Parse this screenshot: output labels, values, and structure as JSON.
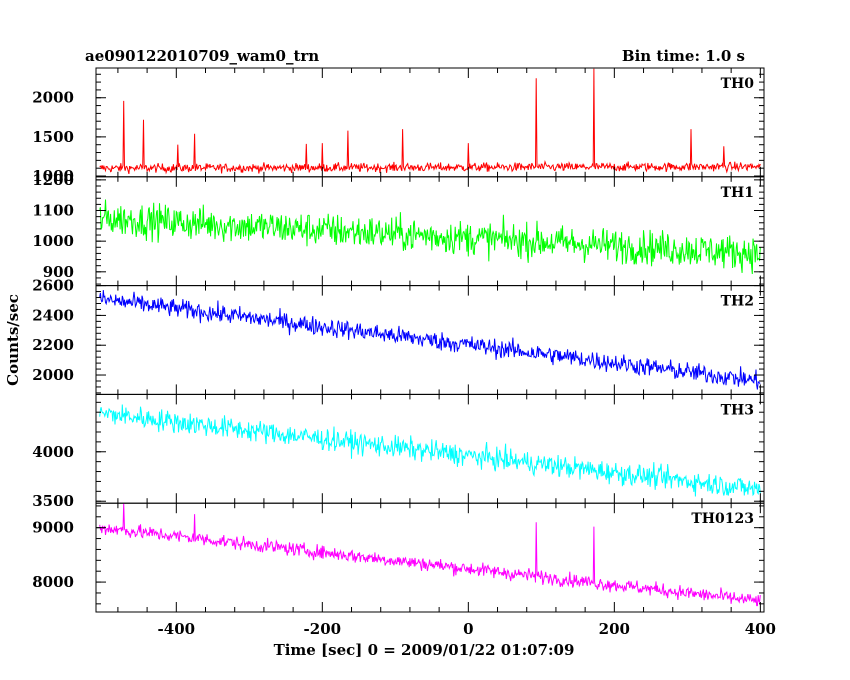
{
  "header": {
    "title": "ae090122010709_wam0_trn",
    "bin_time": "Bin time: 1.0 s"
  },
  "chart_data": {
    "type": "line",
    "xlabel": "Time [sec] 0 = 2009/01/22 01:07:09",
    "ylabel": "Counts/sec",
    "xlim": [
      -510,
      405
    ],
    "x_ticks": [
      "-400",
      "-200",
      "0",
      "200",
      "400"
    ],
    "x_tick_values": [
      -400,
      -200,
      0,
      200,
      400
    ],
    "x_range_data": [
      -505,
      400
    ],
    "panels": [
      {
        "name": "TH0",
        "color": "#ff0000",
        "ylim": [
          990,
          2380
        ],
        "y_ticks": [
          "1000",
          "1500",
          "2000"
        ],
        "y_tick_values": [
          1000,
          1500,
          2000
        ],
        "trend": {
          "start": 1100,
          "end": 1120
        },
        "noise": 40,
        "spikes": [
          {
            "x": -472,
            "y": 1960
          },
          {
            "x": -445,
            "y": 1720
          },
          {
            "x": -398,
            "y": 1400
          },
          {
            "x": -375,
            "y": 1540
          },
          {
            "x": -222,
            "y": 1410
          },
          {
            "x": -200,
            "y": 1420
          },
          {
            "x": -165,
            "y": 1580
          },
          {
            "x": -90,
            "y": 1600
          },
          {
            "x": 0,
            "y": 1420
          },
          {
            "x": 93,
            "y": 2250
          },
          {
            "x": 172,
            "y": 2370
          },
          {
            "x": 305,
            "y": 1600
          },
          {
            "x": 350,
            "y": 1380
          }
        ]
      },
      {
        "name": "TH1",
        "color": "#00ff00",
        "ylim": [
          855,
          1210
        ],
        "y_ticks": [
          "900",
          "1000",
          "1100",
          "1200"
        ],
        "y_tick_values": [
          900,
          1000,
          1100,
          1200
        ],
        "trend": {
          "start": 1075,
          "end": 960
        },
        "noise": 40
      },
      {
        "name": "TH2",
        "color": "#0000ff",
        "ylim": [
          1870,
          2600
        ],
        "y_ticks": [
          "2000",
          "2200",
          "2400",
          "2600"
        ],
        "y_tick_values": [
          2000,
          2200,
          2400,
          2600
        ],
        "trend": {
          "start": 2510,
          "end": 1960
        },
        "noise": 45
      },
      {
        "name": "TH3",
        "color": "#00ffff",
        "ylim": [
          3480,
          4580
        ],
        "y_ticks": [
          "3500",
          "4000"
        ],
        "y_tick_values": [
          3500,
          4000
        ],
        "trend": {
          "start": 4390,
          "end": 3620
        },
        "noise": 80
      },
      {
        "name": "TH0123",
        "color": "#ff00ff",
        "ylim": [
          7450,
          9450
        ],
        "y_ticks": [
          "8000",
          "9000"
        ],
        "y_tick_values": [
          8000,
          9000
        ],
        "trend": {
          "start": 9000,
          "end": 7650
        },
        "noise": 90,
        "spikes": [
          {
            "x": -472,
            "y": 9450
          },
          {
            "x": -375,
            "y": 9250
          },
          {
            "x": 93,
            "y": 9100
          },
          {
            "x": 172,
            "y": 9020
          }
        ]
      }
    ]
  }
}
